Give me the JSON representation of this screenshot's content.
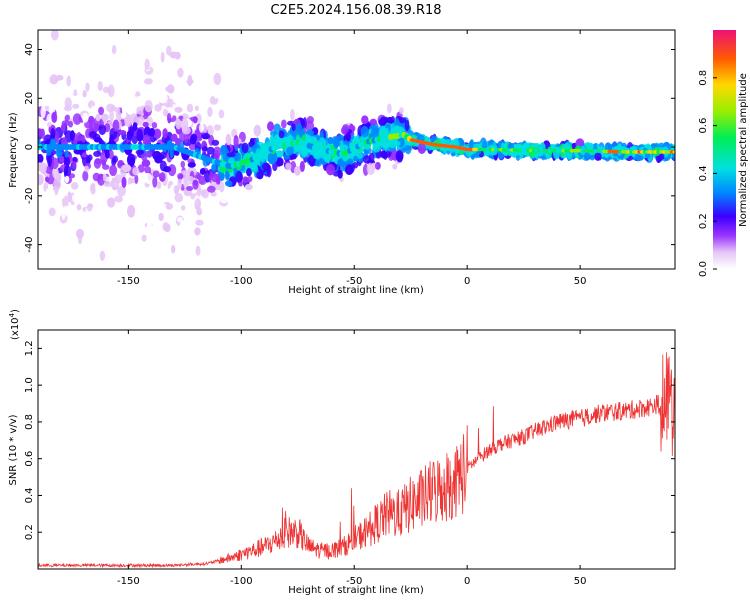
{
  "title": "C2E5.2024.156.08.39.R18",
  "chart_data": [
    {
      "type": "heatmap",
      "xlabel": "Height of straight line (km)",
      "ylabel": "Frequency (Hz)",
      "xlim": [
        -190,
        92
      ],
      "ylim": [
        -50,
        48
      ],
      "xticks": [
        -150,
        -100,
        -50,
        0,
        50
      ],
      "yticks": [
        -40,
        -20,
        0,
        20,
        40
      ],
      "colorbar": {
        "label": "Normalized spectral amplitude",
        "range": [
          0,
          1
        ],
        "ticks": [
          0.0,
          0.2,
          0.4,
          0.6,
          0.8
        ]
      },
      "ridge": {
        "x": [
          -190,
          -170,
          -150,
          -130,
          -115,
          -105,
          -95,
          -85,
          -75,
          -65,
          -55,
          -45,
          -35,
          -28,
          -25,
          -15,
          -5,
          0,
          10,
          30,
          50,
          70,
          92
        ],
        "freq": [
          0,
          0,
          0,
          0,
          -5,
          -8,
          -5,
          0,
          2,
          -1,
          -3,
          2,
          4,
          5,
          3,
          1,
          0,
          -1,
          -1,
          -1.5,
          -1.5,
          -2,
          -2
        ]
      },
      "grid": false
    },
    {
      "type": "line",
      "xlabel": "Height of straight line (km)",
      "ylabel": "SNR (10 * v/v)",
      "scale_label": "(x10",
      "scale_exponent": "4",
      "scale_suffix": ")",
      "xlim": [
        -190,
        92
      ],
      "ylim": [
        0,
        1.3
      ],
      "xticks": [
        -150,
        -100,
        -50,
        0,
        50
      ],
      "yticks": [
        0.2,
        0.4,
        0.6,
        0.8,
        1.0,
        1.2
      ],
      "series": [
        {
          "color": "#ee3333",
          "x": [
            -190,
            -160,
            -130,
            -115,
            -105,
            -100,
            -95,
            -90,
            -85,
            -80,
            -75,
            -70,
            -65,
            -60,
            -55,
            -50,
            -45,
            -40,
            -35,
            -30,
            -25,
            -20,
            -15,
            -10,
            -5,
            0,
            5,
            10,
            15,
            20,
            25,
            30,
            40,
            50,
            60,
            70,
            80,
            85,
            88,
            92
          ],
          "y": [
            0.02,
            0.02,
            0.02,
            0.03,
            0.06,
            0.08,
            0.1,
            0.12,
            0.15,
            0.2,
            0.2,
            0.12,
            0.1,
            0.1,
            0.12,
            0.16,
            0.2,
            0.25,
            0.3,
            0.3,
            0.35,
            0.38,
            0.42,
            0.45,
            0.48,
            0.55,
            0.6,
            0.65,
            0.68,
            0.7,
            0.72,
            0.75,
            0.8,
            0.82,
            0.85,
            0.86,
            0.88,
            0.9,
            0.92,
            0.95
          ]
        }
      ],
      "grid": false
    }
  ]
}
